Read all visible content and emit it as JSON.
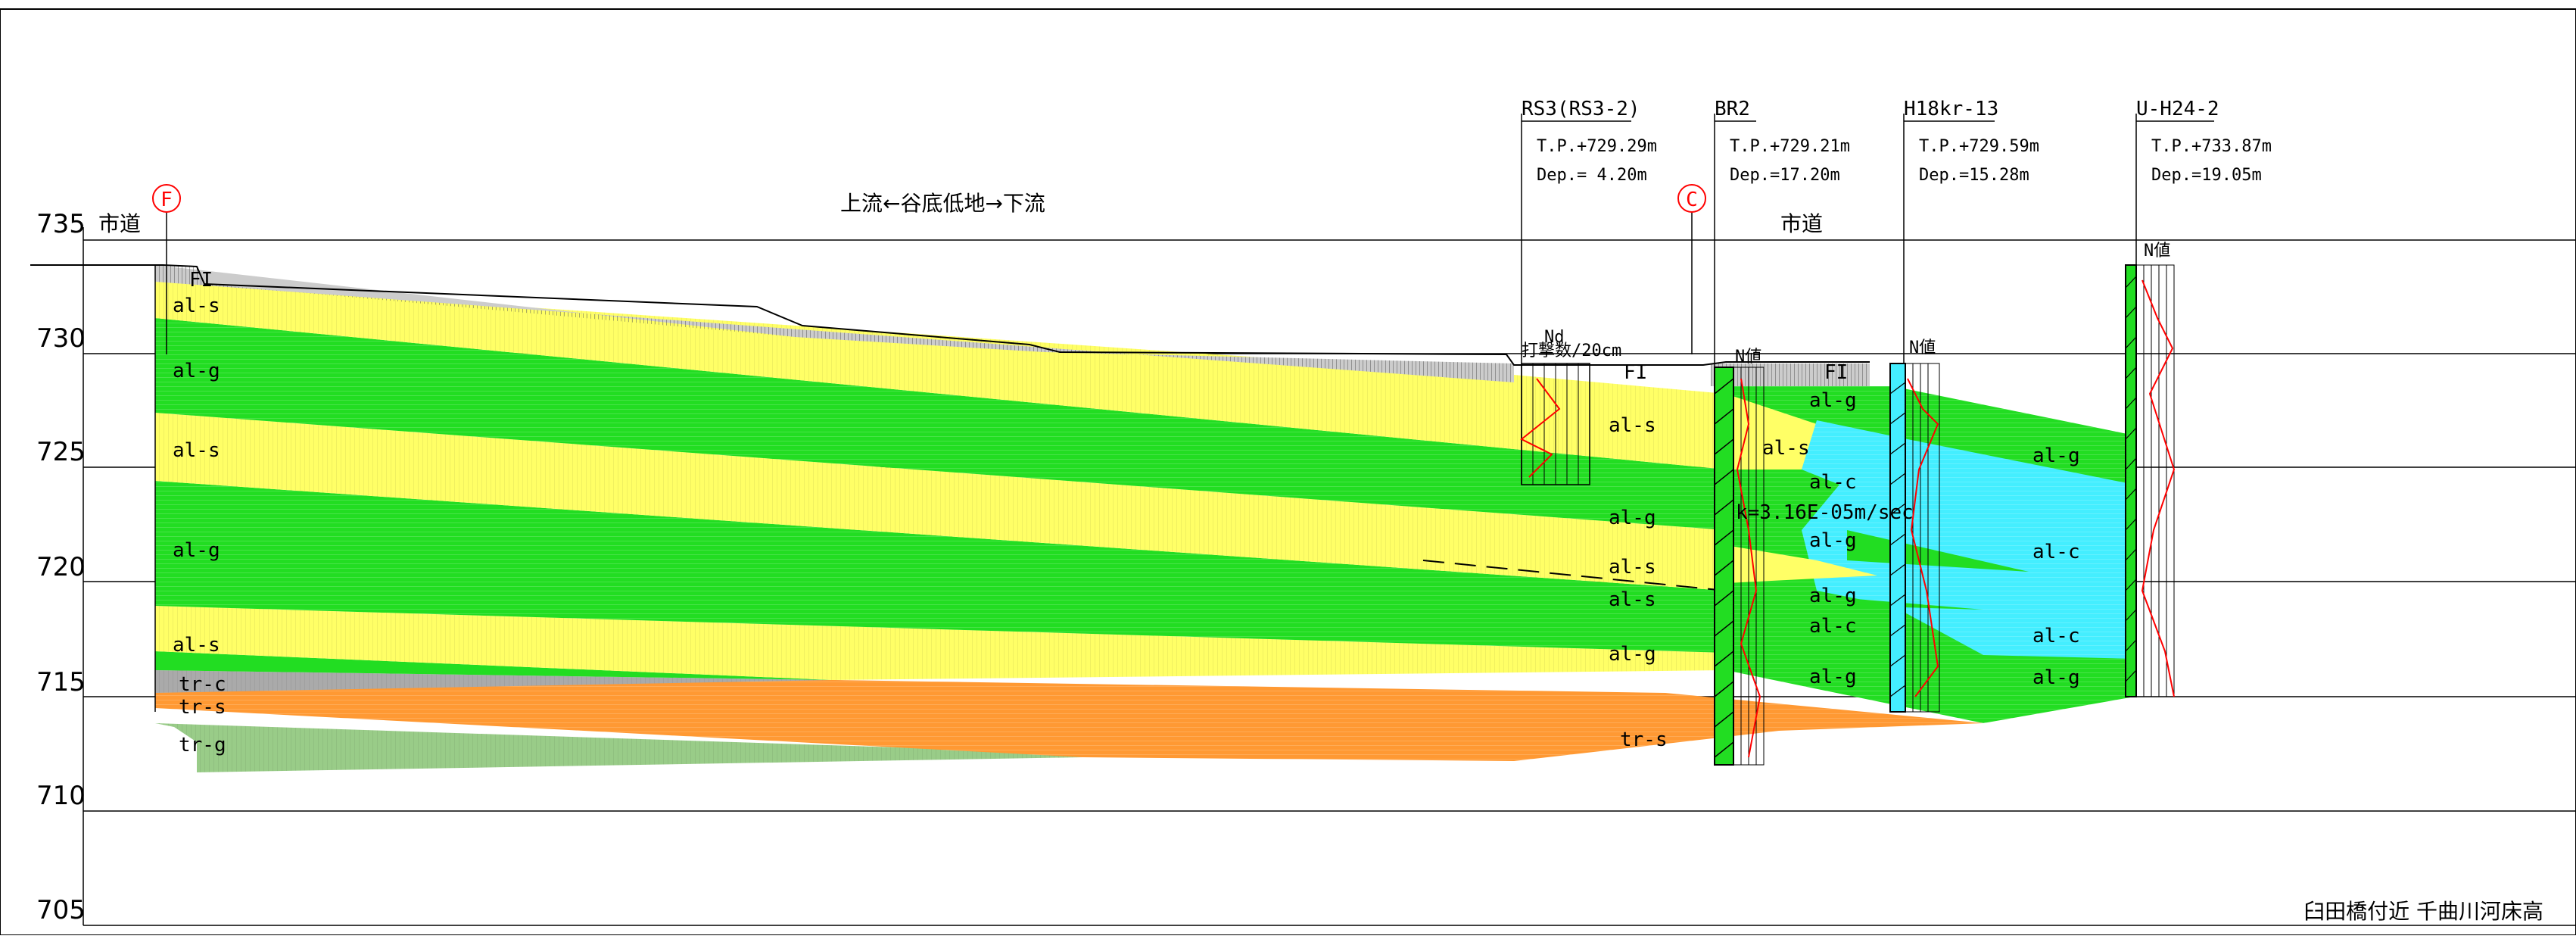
{
  "elevation_axis": {
    "ticks": [
      "735",
      "730",
      "725",
      "720",
      "715",
      "710",
      "705"
    ]
  },
  "headings": {
    "road_left": "市道",
    "road_right": "市道",
    "flow": "上流←谷底低地→下流",
    "footer": "臼田橋付近 千曲川河床高"
  },
  "markers": {
    "f": "F",
    "c": "C"
  },
  "boreholes": [
    {
      "name": "RS3(RS3-2)",
      "tp": "T.P.+729.29m",
      "dep": "Dep.= 4.20m"
    },
    {
      "name": "BR2",
      "tp": "T.P.+729.21m",
      "dep": "Dep.=17.20m"
    },
    {
      "name": "H18kr-13",
      "tp": "T.P.+729.59m",
      "dep": "Dep.=15.28m"
    },
    {
      "name": "U-H24-2",
      "tp": "T.P.+733.87m",
      "dep": "Dep.=19.05m"
    }
  ],
  "borehole_small_labels": {
    "rs3_nd": "Nd",
    "rs3_unit": "打撃数/20cm",
    "br2_n": "N値",
    "h18_n": "N値",
    "uh24_n": "N値"
  },
  "permeability": "k=3.16E-05m/sec",
  "layers": {
    "fi_left": "FI",
    "fi_mid": "FI",
    "fi_right": "FI",
    "als_1": "al-s",
    "alg_1": "al-g",
    "als_2": "al-s",
    "alg_2": "al-g",
    "als_3": "al-s",
    "trc": "tr-c",
    "trs": "tr-s",
    "trg": "tr-g",
    "mid_als_1": "al-s",
    "mid_alg_1": "al-g",
    "mid_als_2": "al-s",
    "mid_als_3": "al-s",
    "mid_alg_2": "al-g",
    "mid_trs": "tr-s",
    "r_alg_1": "al-g",
    "r_als_1": "al-s",
    "r_alc_1": "al-c",
    "r_alg_2": "al-g",
    "r_alg_3": "al-g",
    "r_alc_2": "al-c",
    "r_alg_4": "al-g",
    "rr_alg_1": "al-g",
    "rr_alc_1": "al-c",
    "rr_alc_2": "al-c",
    "rr_alg_2": "al-g"
  },
  "colors": {
    "sand": "#ffff66",
    "gravel": "#22dd22",
    "clay": "#44eeff",
    "terrace_sand": "#ff9933",
    "terrace_gravel": "#99cc88",
    "terrace_clay": "#aaaaaa",
    "fill": "#cccccc",
    "log_red": "#ff0000"
  }
}
